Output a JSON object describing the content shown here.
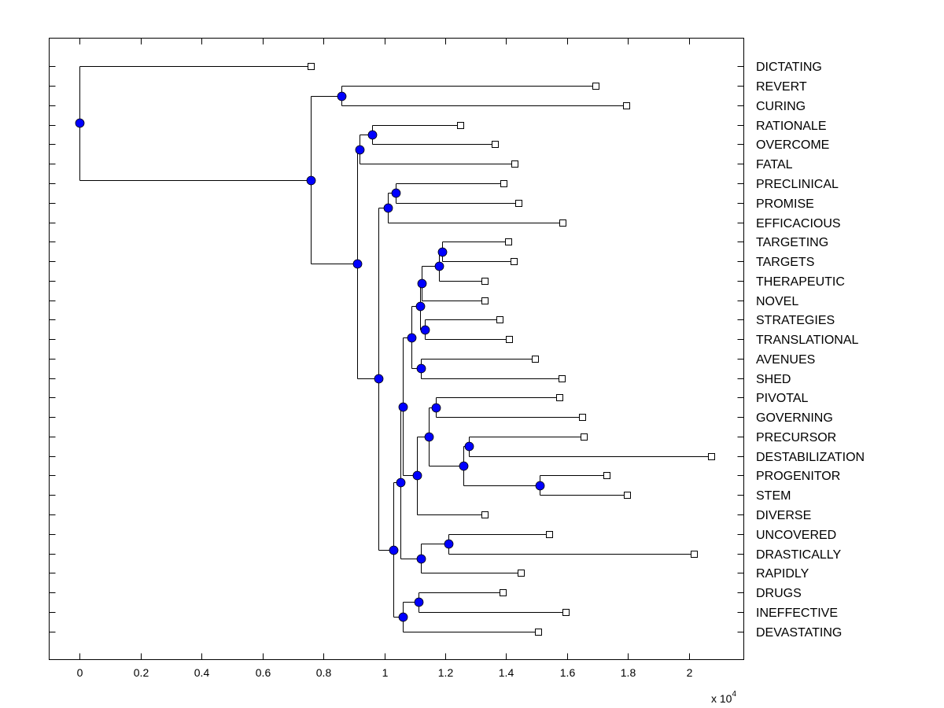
{
  "chart_data": {
    "type": "dendrogram",
    "title": "",
    "xlabel": "",
    "ylabel": "",
    "x_multiplier_label": "x 10",
    "x_multiplier_exponent": "4",
    "xlim": [
      -0.1,
      2.18
    ],
    "xticks": [
      0,
      0.2,
      0.4,
      0.6,
      0.8,
      1,
      1.2,
      1.4,
      1.6,
      1.8,
      2
    ],
    "xtick_labels": [
      "0",
      "0.2",
      "0.4",
      "0.6",
      "0.8",
      "1",
      "1.2",
      "1.4",
      "1.6",
      "1.8",
      "2"
    ],
    "grid": false,
    "leaf_labels_position": "right",
    "colors": {
      "node": "#0000ff",
      "line": "#000000",
      "leaf_marker": "#ffffff"
    },
    "tree": {
      "x": 0.0,
      "children": [
        {
          "leaf": "DICTATING",
          "x": 0.759
        },
        {
          "x": 0.759,
          "children": [
            {
              "x": 0.859,
              "children": [
                {
                  "leaf": "REVERT",
                  "x": 1.693
                },
                {
                  "leaf": "CURING",
                  "x": 1.794
                }
              ]
            },
            {
              "x": 0.911,
              "children": [
                {
                  "x": 0.919,
                  "children": [
                    {
                      "x": 0.96,
                      "children": [
                        {
                          "leaf": "RATIONALE",
                          "x": 1.249
                        },
                        {
                          "leaf": "OVERCOME",
                          "x": 1.363
                        }
                      ]
                    },
                    {
                      "leaf": "FATAL",
                      "x": 1.427
                    }
                  ]
                },
                {
                  "x": 0.981,
                  "children": [
                    {
                      "x": 1.012,
                      "children": [
                        {
                          "x": 1.037,
                          "children": [
                            {
                              "leaf": "PRECLINICAL",
                              "x": 1.391
                            },
                            {
                              "leaf": "PROMISE",
                              "x": 1.44
                            }
                          ]
                        },
                        {
                          "leaf": "EFFICACIOUS",
                          "x": 1.585
                        }
                      ]
                    },
                    {
                      "x": 1.03,
                      "children": [
                        {
                          "x": 1.053,
                          "children": [
                            {
                              "x": 1.061,
                              "children": [
                                {
                                  "x": 1.089,
                                  "children": [
                                    {
                                      "x": 1.117,
                                      "children": [
                                        {
                                          "x": 1.123,
                                          "children": [
                                            {
                                              "x": 1.179,
                                              "children": [
                                                {
                                                  "x": 1.19,
                                                  "children": [
                                                    {
                                                      "leaf": "TARGETING",
                                                      "x": 1.406
                                                    },
                                                    {
                                                      "leaf": "TARGETS",
                                                      "x": 1.425
                                                    }
                                                  ]
                                                },
                                                {
                                                  "leaf": "THERAPEUTIC",
                                                  "x": 1.329
                                                }
                                              ]
                                            },
                                            {
                                              "leaf": "NOVEL",
                                              "x": 1.329
                                            }
                                          ]
                                        },
                                        {
                                          "x": 1.133,
                                          "children": [
                                            {
                                              "leaf": "STRATEGIES",
                                              "x": 1.378
                                            },
                                            {
                                              "leaf": "TRANSLATIONAL",
                                              "x": 1.409
                                            }
                                          ]
                                        }
                                      ]
                                    },
                                    {
                                      "x": 1.12,
                                      "children": [
                                        {
                                          "leaf": "AVENUES",
                                          "x": 1.494
                                        },
                                        {
                                          "leaf": "SHED",
                                          "x": 1.582
                                        }
                                      ]
                                    }
                                  ]
                                },
                                {
                                  "x": 1.107,
                                  "children": [
                                    {
                                      "x": 1.146,
                                      "children": [
                                        {
                                          "x": 1.169,
                                          "children": [
                                            {
                                              "leaf": "PIVOTAL",
                                              "x": 1.574
                                            },
                                            {
                                              "leaf": "GOVERNING",
                                              "x": 1.649
                                            }
                                          ]
                                        },
                                        {
                                          "x": 1.259,
                                          "children": [
                                            {
                                              "x": 1.277,
                                              "children": [
                                                {
                                                  "leaf": "PRECURSOR",
                                                  "x": 1.654
                                                },
                                                {
                                                  "leaf": "DESTABILIZATION",
                                                  "x": 2.072
                                                }
                                              ]
                                            },
                                            {
                                              "x": 1.51,
                                              "children": [
                                                {
                                                  "leaf": "PROGENITOR",
                                                  "x": 1.729
                                                },
                                                {
                                                  "leaf": "STEM",
                                                  "x": 1.796
                                                }
                                              ]
                                            }
                                          ]
                                        }
                                      ]
                                    },
                                    {
                                      "leaf": "DIVERSE",
                                      "x": 1.329
                                    }
                                  ]
                                }
                              ]
                            },
                            {
                              "x": 1.12,
                              "children": [
                                {
                                  "x": 1.21,
                                  "children": [
                                    {
                                      "leaf": "UNCOVERED",
                                      "x": 1.541
                                    },
                                    {
                                      "leaf": "DRASTICALLY",
                                      "x": 2.015
                                    }
                                  ]
                                },
                                {
                                  "leaf": "RAPIDLY",
                                  "x": 1.448
                                }
                              ]
                            }
                          ]
                        },
                        {
                          "x": 1.061,
                          "children": [
                            {
                              "x": 1.112,
                              "children": [
                                {
                                  "leaf": "DRUGS",
                                  "x": 1.388
                                },
                                {
                                  "leaf": "INEFFECTIVE",
                                  "x": 1.595
                                }
                              ]
                            },
                            {
                              "leaf": "DEVASTATING",
                              "x": 1.505
                            }
                          ]
                        }
                      ]
                    }
                  ]
                }
              ]
            }
          ]
        }
      ]
    }
  }
}
